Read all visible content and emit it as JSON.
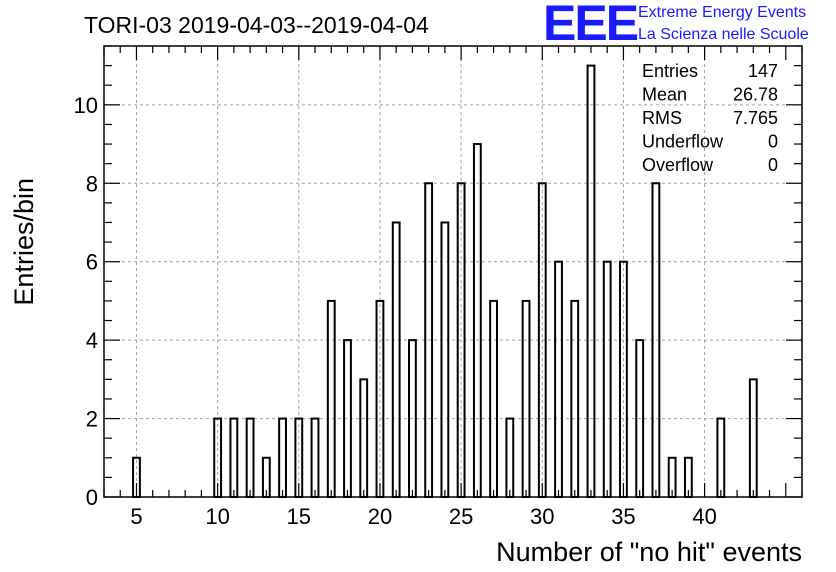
{
  "colors": {
    "bar": "#000000",
    "grid": "#a0a0a0",
    "logo": "#1a1aff"
  },
  "logo": {
    "mark": "EEE",
    "line1": "Extreme Energy Events",
    "line2": "La Scienza nelle Scuole"
  },
  "stats": {
    "rows": [
      {
        "key": "Entries",
        "value": "147"
      },
      {
        "key": "Mean",
        "value": "26.78"
      },
      {
        "key": "RMS",
        "value": "7.765"
      },
      {
        "key": "Underflow",
        "value": "0"
      },
      {
        "key": "Overflow",
        "value": "0"
      }
    ]
  },
  "chart_data": {
    "type": "bar",
    "title": "TORI-03 2019-04-03--2019-04-04",
    "xlabel": "Number of \"no hit\" events",
    "ylabel": "Entries/bin",
    "xlim": [
      3,
      46
    ],
    "ylim": [
      0,
      11.5
    ],
    "grid": true,
    "legend": "none",
    "x_ticks": [
      5,
      10,
      15,
      20,
      25,
      30,
      35,
      40
    ],
    "y_ticks": [
      0,
      2,
      4,
      6,
      8,
      10
    ],
    "x": [
      5,
      10,
      11,
      12,
      13,
      14,
      15,
      16,
      17,
      18,
      19,
      20,
      21,
      22,
      23,
      24,
      25,
      26,
      27,
      28,
      29,
      30,
      31,
      32,
      33,
      34,
      35,
      36,
      37,
      38,
      39,
      41,
      43
    ],
    "values": [
      1,
      2,
      2,
      2,
      1,
      2,
      2,
      2,
      5,
      4,
      3,
      5,
      7,
      4,
      8,
      7,
      8,
      9,
      5,
      2,
      5,
      8,
      6,
      5,
      11,
      6,
      6,
      4,
      8,
      1,
      1,
      2,
      3
    ]
  }
}
